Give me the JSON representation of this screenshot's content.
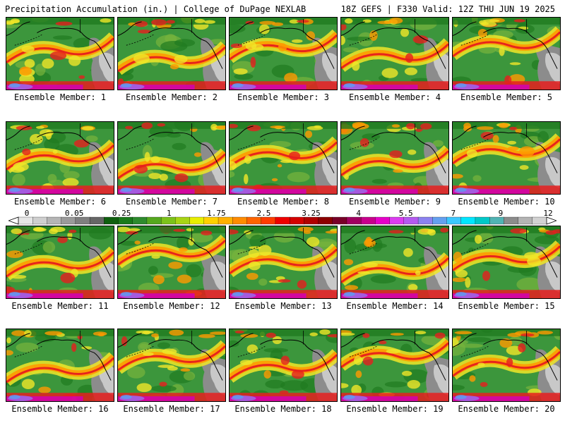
{
  "header": {
    "title": "Precipitation Accumulation (in.) | College of DuPage NEXLAB",
    "run_info": "18Z GEFS | F330 Valid: 12Z THU JUN 19 2025"
  },
  "panels": [
    {
      "label": "Ensemble Member: 1"
    },
    {
      "label": "Ensemble Member: 2"
    },
    {
      "label": "Ensemble Member: 3"
    },
    {
      "label": "Ensemble Member: 4"
    },
    {
      "label": "Ensemble Member: 5"
    },
    {
      "label": "Ensemble Member: 6"
    },
    {
      "label": "Ensemble Member: 7"
    },
    {
      "label": "Ensemble Member: 8"
    },
    {
      "label": "Ensemble Member: 9"
    },
    {
      "label": "Ensemble Member: 10"
    },
    {
      "label": "Ensemble Member: 11"
    },
    {
      "label": "Ensemble Member: 12"
    },
    {
      "label": "Ensemble Member: 13"
    },
    {
      "label": "Ensemble Member: 14"
    },
    {
      "label": "Ensemble Member: 15"
    },
    {
      "label": "Ensemble Member: 16"
    },
    {
      "label": "Ensemble Member: 17"
    },
    {
      "label": "Ensemble Member: 18"
    },
    {
      "label": "Ensemble Member: 19"
    },
    {
      "label": "Ensemble Member: 20"
    }
  ],
  "colorbar": {
    "tick_labels": [
      "0",
      "0.05",
      "0.25",
      "1",
      "1.75",
      "2.5",
      "3.25",
      "4",
      "5.5",
      "7",
      "9",
      "12"
    ],
    "colors": [
      "#e6e6e6",
      "#cfcfcf",
      "#b5b5b5",
      "#9a9a9a",
      "#7f7f7f",
      "#666666",
      "#0f5f0f",
      "#1a7a1a",
      "#2e8b2e",
      "#55a81f",
      "#7cc21a",
      "#a8d414",
      "#e8ee00",
      "#ffd000",
      "#ffb000",
      "#ff8c00",
      "#ff6400",
      "#ff3c00",
      "#ee0000",
      "#d40000",
      "#b00000",
      "#8c0000",
      "#780028",
      "#a00060",
      "#c8008c",
      "#e600c8",
      "#dc3cf0",
      "#b45af0",
      "#8c82f0",
      "#64a0f0",
      "#3cc8ff",
      "#00e6ff",
      "#00c8c8",
      "#50b4b4",
      "#8c8c8c",
      "#b4b4b4",
      "#d2d2d2"
    ]
  },
  "map_colors": {
    "land_dry": "#8c8c8c",
    "land_light": "#c8c8c8",
    "green_dark": "#1f7a1f",
    "green": "#3c963c",
    "green_light": "#78b43c",
    "yellow": "#f0e628",
    "orange": "#ff9a00",
    "red": "#e61e1e",
    "magenta": "#d200b4",
    "purple": "#a064e6",
    "blue": "#6496f0",
    "coast": "#000000"
  }
}
